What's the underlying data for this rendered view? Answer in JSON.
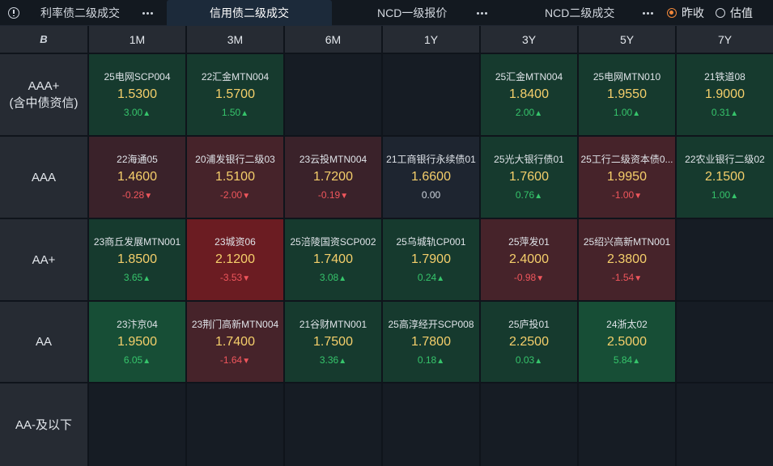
{
  "tabs": [
    {
      "label": "利率债二级成交",
      "active": false
    },
    {
      "label": "信用债二级成交",
      "active": true
    },
    {
      "label": "NCD一级报价",
      "active": false
    },
    {
      "label": "NCD二级成交",
      "active": false
    }
  ],
  "radios": [
    {
      "label": "昨收",
      "checked": true
    },
    {
      "label": "估值",
      "checked": false
    }
  ],
  "corner_label": "B",
  "columns": [
    "1M",
    "3M",
    "6M",
    "1Y",
    "3Y",
    "5Y",
    "7Y"
  ],
  "rows": [
    {
      "label_lines": [
        "AAA+",
        "(含中债资信)"
      ]
    },
    {
      "label_lines": [
        "AAA"
      ]
    },
    {
      "label_lines": [
        "AA+"
      ]
    },
    {
      "label_lines": [
        "AA"
      ]
    },
    {
      "label_lines": [
        "AA-及以下"
      ]
    }
  ],
  "colors": {
    "green_strong": "#174e36",
    "green": "#163a2e",
    "red_strong": "#6b1c22",
    "red": "#46232a",
    "dim_red": "#3a222a",
    "neutral": "#1e2530",
    "empty": "#161c24",
    "up": "#36c46b",
    "down": "#f0565c",
    "price": "#f5cf6b",
    "accent": "#f0873a"
  },
  "cells": [
    [
      {
        "name": "25电网SCP004",
        "price": "1.5300",
        "change": "3.00",
        "dir": "up",
        "tone": "green"
      },
      {
        "name": "22汇金MTN004",
        "price": "1.5700",
        "change": "1.50",
        "dir": "up",
        "tone": "green"
      },
      null,
      null,
      {
        "name": "25汇金MTN004",
        "price": "1.8400",
        "change": "2.00",
        "dir": "up",
        "tone": "green"
      },
      {
        "name": "25电网MTN010",
        "price": "1.9550",
        "change": "1.00",
        "dir": "up",
        "tone": "green"
      },
      {
        "name": "21铁道08",
        "price": "1.9000",
        "change": "0.31",
        "dir": "up",
        "tone": "green"
      }
    ],
    [
      {
        "name": "22海通05",
        "price": "1.4600",
        "change": "-0.28",
        "dir": "down",
        "tone": "dim_red"
      },
      {
        "name": "20浦发银行二级03",
        "price": "1.5100",
        "change": "-2.00",
        "dir": "down",
        "tone": "red"
      },
      {
        "name": "23云投MTN004",
        "price": "1.7200",
        "change": "-0.19",
        "dir": "down",
        "tone": "dim_red"
      },
      {
        "name": "21工商银行永续债01",
        "price": "1.6600",
        "change": "0.00",
        "dir": "flat",
        "tone": "neutral"
      },
      {
        "name": "25光大银行债01",
        "price": "1.7600",
        "change": "0.76",
        "dir": "up",
        "tone": "green"
      },
      {
        "name": "25工行二级资本债0...",
        "price": "1.9950",
        "change": "-1.00",
        "dir": "down",
        "tone": "red"
      },
      {
        "name": "22农业银行二级02",
        "price": "2.1500",
        "change": "1.00",
        "dir": "up",
        "tone": "green"
      }
    ],
    [
      {
        "name": "23商丘发展MTN001",
        "price": "1.8500",
        "change": "3.65",
        "dir": "up",
        "tone": "green"
      },
      {
        "name": "23城资06",
        "price": "2.1200",
        "change": "-3.53",
        "dir": "down",
        "tone": "red_strong"
      },
      {
        "name": "25涪陵国资SCP002",
        "price": "1.7400",
        "change": "3.08",
        "dir": "up",
        "tone": "green"
      },
      {
        "name": "25乌城轨CP001",
        "price": "1.7900",
        "change": "0.24",
        "dir": "up",
        "tone": "green"
      },
      {
        "name": "25萍发01",
        "price": "2.4000",
        "change": "-0.98",
        "dir": "down",
        "tone": "red"
      },
      {
        "name": "25绍兴高新MTN001",
        "price": "2.3800",
        "change": "-1.54",
        "dir": "down",
        "tone": "red"
      },
      null
    ],
    [
      {
        "name": "23汴京04",
        "price": "1.9500",
        "change": "6.05",
        "dir": "up",
        "tone": "green_strong"
      },
      {
        "name": "23荆门高新MTN004",
        "price": "1.7400",
        "change": "-1.64",
        "dir": "down",
        "tone": "red"
      },
      {
        "name": "21谷财MTN001",
        "price": "1.7500",
        "change": "3.36",
        "dir": "up",
        "tone": "green"
      },
      {
        "name": "25高淳经开SCP008",
        "price": "1.7800",
        "change": "0.18",
        "dir": "up",
        "tone": "green"
      },
      {
        "name": "25庐投01",
        "price": "2.2500",
        "change": "0.03",
        "dir": "up",
        "tone": "green"
      },
      {
        "name": "24浙太02",
        "price": "2.5000",
        "change": "5.84",
        "dir": "up",
        "tone": "green_strong"
      },
      null
    ],
    [
      null,
      null,
      null,
      null,
      null,
      null,
      null
    ]
  ]
}
